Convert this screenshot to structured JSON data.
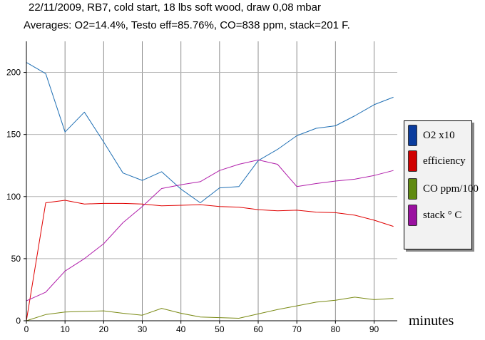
{
  "header": {
    "title_line1": "22/11/2009, RB7, cold start, 18 lbs soft wood, draw 0,08 mbar",
    "title_line2": "Averages: O2=14.4%, Testo eff=85.76%, CO=838 ppm, stack=201 F."
  },
  "chart_data": {
    "type": "line",
    "title": "22/11/2009, RB7, cold start, 18 lbs soft wood, draw 0,08 mbar",
    "subtitle": "Averages: O2=14.4%, Testo eff=85.76%, CO=838 ppm, stack=201 F.",
    "xlabel": "minutes",
    "ylabel": "",
    "xlim": [
      0,
      96
    ],
    "ylim": [
      0,
      225
    ],
    "x_ticks": [
      0,
      10,
      20,
      30,
      40,
      50,
      60,
      70,
      80,
      90
    ],
    "y_ticks": [
      0,
      50,
      100,
      150,
      200
    ],
    "grid": true,
    "legend_position": "right",
    "x": [
      0,
      5,
      10,
      15,
      20,
      25,
      30,
      35,
      40,
      45,
      50,
      55,
      60,
      65,
      70,
      75,
      80,
      85,
      90,
      95
    ],
    "series": [
      {
        "name": "O2 x10",
        "color": "#1f6fb4",
        "swatch": "#0a3c9e",
        "values": [
          208,
          199,
          152,
          168,
          144,
          119,
          113,
          120,
          106,
          95,
          107,
          108,
          129,
          138,
          149,
          155,
          157,
          165,
          174,
          180
        ]
      },
      {
        "name": "efficiency",
        "color": "#e00000",
        "swatch": "#d00000",
        "values": [
          0,
          95,
          97,
          94,
          94.5,
          94.5,
          94,
          92.5,
          93,
          93.5,
          92,
          91.5,
          89.5,
          88.5,
          89,
          87.5,
          87,
          85,
          81,
          76
        ]
      },
      {
        "name": "CO ppm/100",
        "color": "#7a8a14",
        "swatch": "#5f8a10",
        "values": [
          0,
          5,
          7,
          7.5,
          8,
          6,
          4.5,
          10,
          6,
          3,
          2.5,
          2,
          5.5,
          9,
          12,
          15,
          16.5,
          19,
          17,
          18
        ]
      },
      {
        "name": "stack ° C",
        "color": "#b01eaa",
        "swatch": "#9a10a0",
        "values": [
          16,
          23,
          40,
          50,
          62,
          79,
          92,
          106.5,
          109.5,
          112,
          121,
          126,
          129.5,
          126,
          108,
          110.5,
          112.5,
          114,
          117,
          121
        ]
      }
    ]
  }
}
